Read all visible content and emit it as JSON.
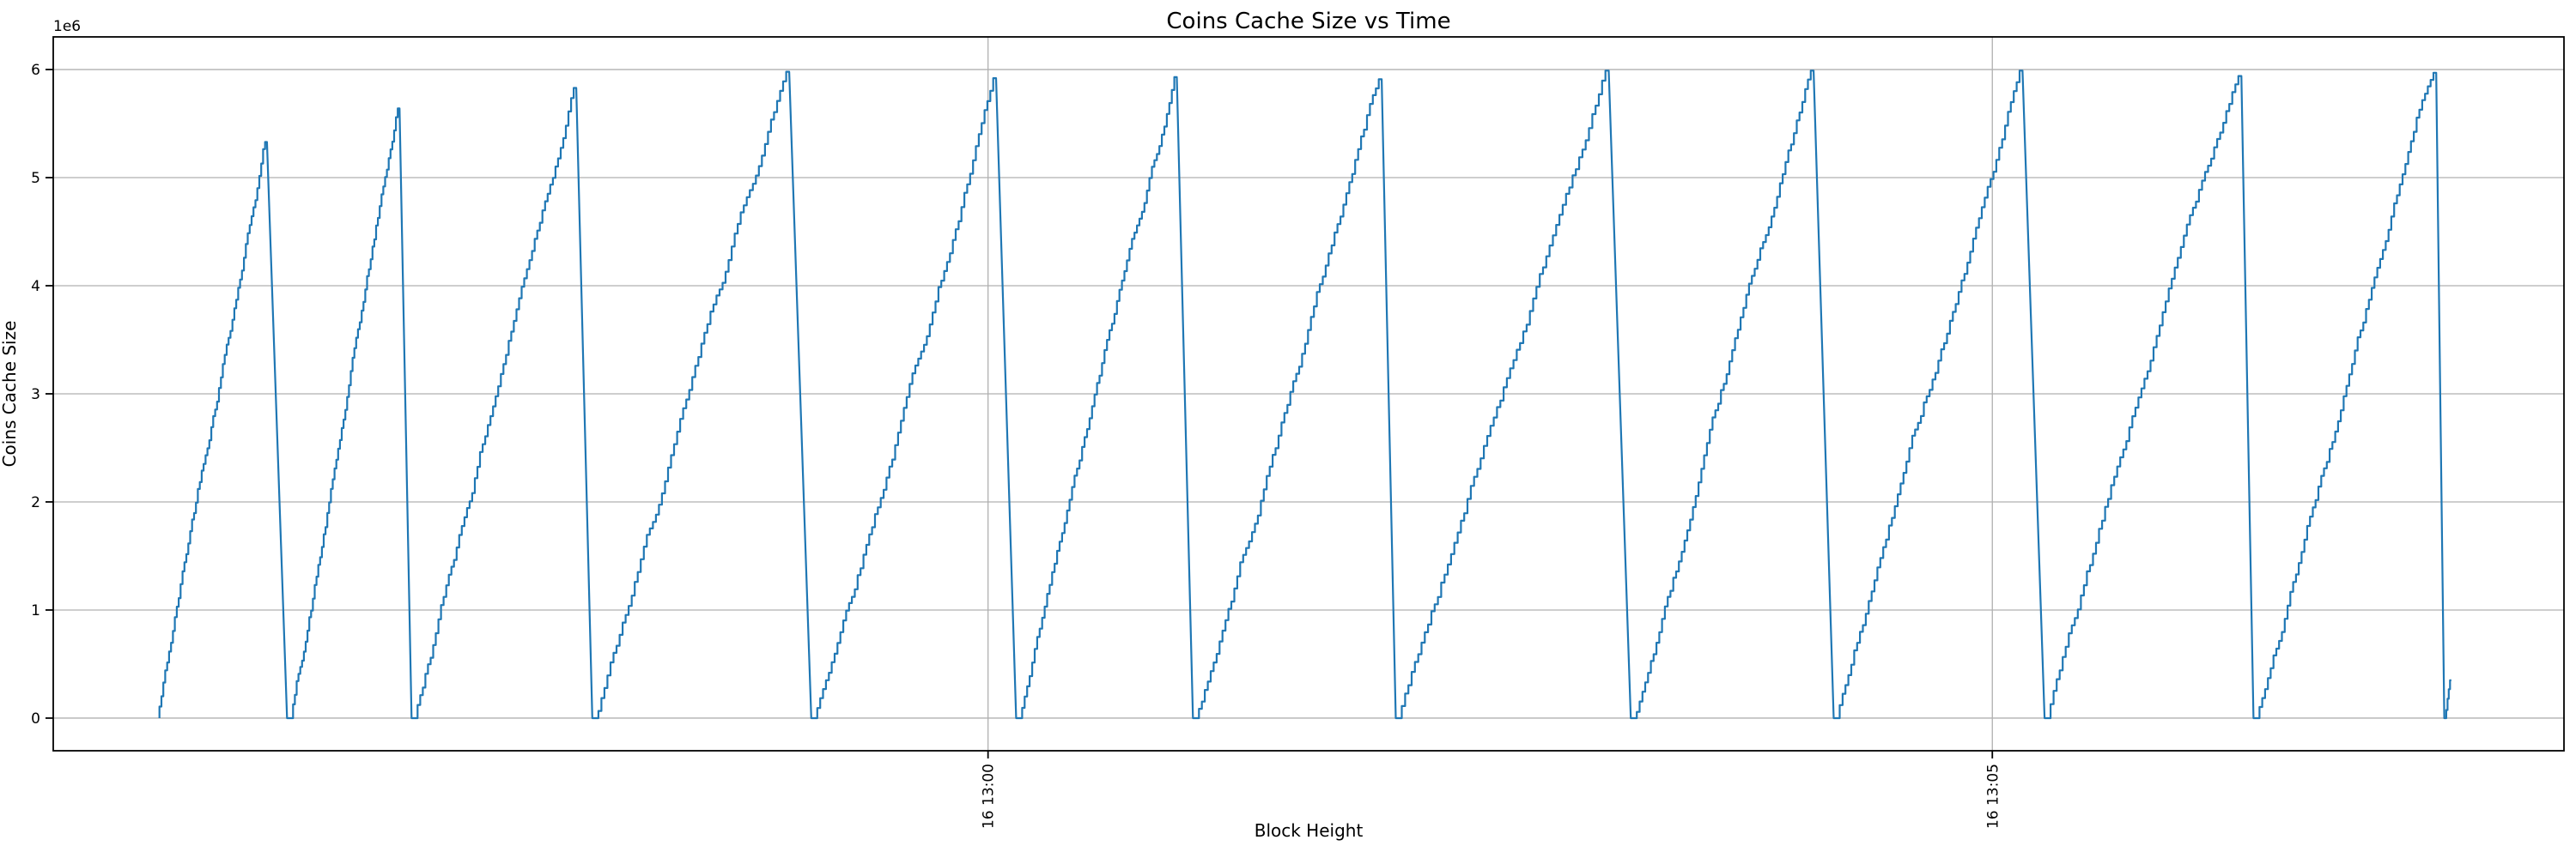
{
  "chart_data": {
    "type": "line",
    "title": "Coins Cache Size vs Time",
    "xlabel": "Block Height",
    "ylabel": "Coins Cache Size",
    "y_offset_text": "1e6",
    "line_color": "#1f77b4",
    "grid_color": "#b0b0b0",
    "spine_color": "#000000",
    "grid": true,
    "legend": "none",
    "pattern": "staircase-sawtooth",
    "x_range_t": [
      775.346,
      787.846
    ],
    "y_range": [
      -0.302,
      6.302
    ],
    "x_ticks": [
      {
        "label": "16 13:00",
        "t": 780
      },
      {
        "label": "16 13:05",
        "t": 785
      }
    ],
    "y_ticks": [
      {
        "label": "0",
        "v": 0
      },
      {
        "label": "1",
        "v": 1
      },
      {
        "label": "2",
        "v": 2
      },
      {
        "label": "3",
        "v": 3
      },
      {
        "label": "4",
        "v": 4
      },
      {
        "label": "5",
        "v": 5
      },
      {
        "label": "6",
        "v": 6
      }
    ],
    "y_unit": 1000000,
    "teeth": [
      {
        "start": 775.875,
        "peak_t": 776.41,
        "peak_v": 5.33,
        "end_t": 776.51
      },
      {
        "start": 776.54,
        "peak_t": 777.07,
        "peak_v": 5.64,
        "end_t": 777.13
      },
      {
        "start": 777.16,
        "peak_t": 777.95,
        "peak_v": 5.83,
        "end_t": 778.03
      },
      {
        "start": 778.06,
        "peak_t": 779.01,
        "peak_v": 5.98,
        "end_t": 779.12
      },
      {
        "start": 779.15,
        "peak_t": 780.04,
        "peak_v": 5.92,
        "end_t": 780.14
      },
      {
        "start": 780.17,
        "peak_t": 780.94,
        "peak_v": 5.93,
        "end_t": 781.02
      },
      {
        "start": 781.05,
        "peak_t": 781.96,
        "peak_v": 5.91,
        "end_t": 782.03
      },
      {
        "start": 782.06,
        "peak_t": 783.09,
        "peak_v": 5.99,
        "end_t": 783.2
      },
      {
        "start": 783.23,
        "peak_t": 784.11,
        "peak_v": 5.99,
        "end_t": 784.21
      },
      {
        "start": 784.24,
        "peak_t": 785.15,
        "peak_v": 5.99,
        "end_t": 785.26
      },
      {
        "start": 785.29,
        "peak_t": 786.24,
        "peak_v": 5.94,
        "end_t": 786.3
      },
      {
        "start": 786.33,
        "peak_t": 787.21,
        "peak_v": 5.97,
        "end_t": 787.25
      },
      {
        "start": 787.26,
        "peak_t": 787.285,
        "peak_v": 0.35,
        "end_t": null
      }
    ]
  }
}
